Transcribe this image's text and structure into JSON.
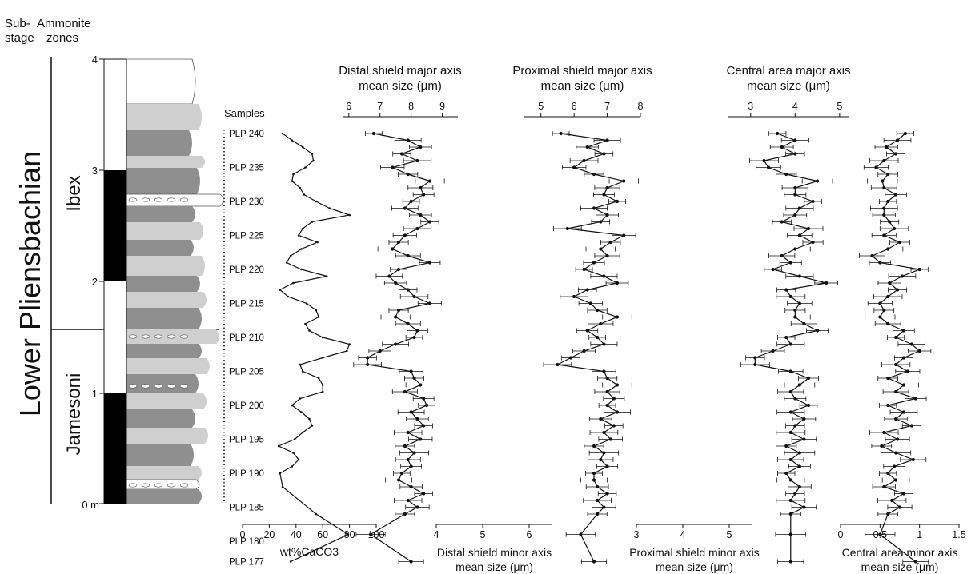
{
  "header": {
    "substage_label": [
      "Sub-",
      "stage"
    ],
    "zones_label": [
      "Ammonite",
      "zones"
    ],
    "samples_label": "Samples"
  },
  "stratigraphy": {
    "stage": "Lower Pliensbachian",
    "zones": [
      "Ibex",
      "Jamesoni"
    ],
    "meter_ticks": [
      "0 m",
      "1",
      "2",
      "3",
      "4"
    ]
  },
  "samples": [
    "PLP 240",
    "PLP 235",
    "PLP 230",
    "PLP 225",
    "PLP 220",
    "PLP 215",
    "PLP 210",
    "PLP 205",
    "PLP 200",
    "PLP 195",
    "PLP 190",
    "PLP 185",
    "PLP 180",
    "PLP 177"
  ],
  "colors": {
    "line": "#111111",
    "dark_bed": "#8f8f8f",
    "light_bed": "#cfcfcf",
    "black_bar": "#000000"
  },
  "chart_data": [
    {
      "type": "line",
      "xlabel": "wt%CaCO3",
      "xlim": [
        0,
        100
      ],
      "xticks": [
        "0",
        "20",
        "40",
        "60",
        "80",
        "100"
      ],
      "x": [
        30,
        37,
        45,
        52,
        53,
        47,
        38,
        37,
        43,
        46,
        55,
        65,
        80,
        52,
        45,
        42,
        56,
        44,
        36,
        33,
        44,
        63,
        38,
        28,
        34,
        48,
        55,
        57,
        47,
        50,
        60,
        80,
        78,
        60,
        43,
        45,
        57,
        60,
        60,
        43,
        37,
        44,
        50,
        52,
        45,
        39,
        27,
        38,
        42,
        37,
        28,
        30,
        55,
        79,
        36
      ],
      "y": [
        240,
        239,
        238,
        237,
        236,
        235,
        234,
        233,
        232,
        231,
        230,
        229,
        228,
        227,
        226,
        225,
        224,
        223,
        222,
        221,
        220,
        219,
        218,
        217,
        216,
        215,
        214,
        213,
        212,
        211,
        210,
        209,
        208,
        207,
        206,
        205,
        204,
        203,
        202,
        201,
        200,
        199,
        198,
        197,
        196,
        195,
        194,
        193,
        192,
        191,
        190,
        188,
        184,
        181,
        177
      ]
    },
    {
      "type": "line",
      "title": "Distal shield major axis mean size (μm)",
      "xlim": [
        5.8,
        9.5
      ],
      "xticks": [
        "6",
        "7",
        "8",
        "9"
      ],
      "x": [
        6.8,
        7.9,
        8.3,
        7.7,
        8.2,
        7.4,
        7.9,
        8.6,
        8.3,
        8.4,
        8.0,
        7.8,
        8.3,
        8.6,
        8.2,
        7.8,
        7.6,
        7.4,
        7.9,
        8.6,
        7.6,
        7.3,
        7.5,
        7.9,
        8.1,
        8.6,
        7.6,
        7.5,
        7.9,
        8.2,
        8.1,
        7.5,
        7.0,
        6.6,
        6.6,
        8.0,
        8.1,
        8.3,
        7.8,
        8.4,
        8.5,
        8.0,
        8.2,
        8.4,
        7.9,
        8.3,
        7.8,
        8.1,
        7.9,
        8.0,
        7.7,
        7.6,
        8.0,
        8.4,
        7.9,
        8.2,
        7.8,
        6.7,
        8.0
      ],
      "y": [
        240,
        239,
        238,
        237,
        236,
        235,
        234,
        233,
        232,
        231,
        230,
        229,
        228,
        227,
        226,
        225,
        224,
        223,
        222,
        221,
        220,
        219,
        218,
        217,
        216,
        215,
        214,
        213,
        212,
        211,
        210,
        209,
        208,
        207,
        206,
        205,
        204,
        203,
        202,
        201,
        200,
        199,
        198,
        197,
        196,
        195,
        194,
        193,
        192,
        191,
        190,
        189,
        188,
        187,
        186,
        185,
        184,
        181,
        177
      ],
      "secondary_axis": {
        "xlabel": "Distal shield minor axis mean size (μm)",
        "xlim": [
          4,
          6.5
        ],
        "xticks": [
          "4",
          "5",
          "6"
        ]
      }
    },
    {
      "type": "line",
      "title": "Proximal shield major axis mean size (μm)",
      "xlim": [
        4.5,
        8
      ],
      "xticks": [
        "5",
        "6",
        "7",
        "8"
      ],
      "x": [
        5.6,
        7.0,
        6.4,
        6.9,
        6.3,
        6.0,
        6.6,
        7.5,
        7.0,
        6.9,
        7.3,
        6.6,
        7.0,
        6.8,
        5.8,
        7.5,
        7.1,
        6.8,
        7.0,
        6.6,
        6.3,
        6.9,
        7.3,
        6.4,
        6.0,
        6.5,
        6.7,
        7.3,
        6.8,
        6.4,
        6.7,
        6.9,
        6.3,
        5.9,
        5.5,
        6.9,
        7.0,
        7.3,
        7.0,
        7.2,
        7.0,
        7.3,
        6.8,
        7.2,
        6.9,
        7.1,
        6.6,
        6.9,
        6.8,
        7.0,
        6.6,
        6.6,
        6.7,
        7.0,
        6.7,
        6.9,
        6.7,
        6.2,
        6.6
      ],
      "y": [
        240,
        239,
        238,
        237,
        236,
        235,
        234,
        233,
        232,
        231,
        230,
        229,
        228,
        227,
        226,
        225,
        224,
        223,
        222,
        221,
        220,
        219,
        218,
        217,
        216,
        215,
        214,
        213,
        212,
        211,
        210,
        209,
        208,
        207,
        206,
        205,
        204,
        203,
        202,
        201,
        200,
        199,
        198,
        197,
        196,
        195,
        194,
        193,
        192,
        191,
        190,
        189,
        188,
        187,
        186,
        185,
        184,
        181,
        177
      ],
      "secondary_axis": {
        "xlabel": "Proximal shield minor axis mean size (μm)",
        "xlim": [
          3,
          5.5
        ],
        "xticks": [
          "3",
          "4",
          "5"
        ]
      }
    },
    {
      "type": "line",
      "title": "Central area major axis mean size (μm)",
      "xlim": [
        2.5,
        5.2
      ],
      "xticks": [
        "3",
        "4",
        "5"
      ],
      "x": [
        3.6,
        4.0,
        3.7,
        4.0,
        3.3,
        3.4,
        3.8,
        4.5,
        4.0,
        4.0,
        4.4,
        4.1,
        4.0,
        3.7,
        4.3,
        4.1,
        4.4,
        4.0,
        3.7,
        3.9,
        3.5,
        4.1,
        4.7,
        3.8,
        3.9,
        4.1,
        4.0,
        4.0,
        4.2,
        4.5,
        3.8,
        3.9,
        3.5,
        3.1,
        3.1,
        3.9,
        4.3,
        4.1,
        3.9,
        4.0,
        4.3,
        3.9,
        4.2,
        4.0,
        3.9,
        4.2,
        3.8,
        4.1,
        3.9,
        4.1,
        3.8,
        3.9,
        4.1,
        4.0,
        3.9,
        4.2,
        3.9,
        3.9,
        3.9
      ],
      "y": [
        240,
        239,
        238,
        237,
        236,
        235,
        234,
        233,
        232,
        231,
        230,
        229,
        228,
        227,
        226,
        225,
        224,
        223,
        222,
        221,
        220,
        219,
        218,
        217,
        216,
        215,
        214,
        213,
        212,
        211,
        210,
        209,
        208,
        207,
        206,
        205,
        204,
        203,
        202,
        201,
        200,
        199,
        198,
        197,
        196,
        195,
        194,
        193,
        192,
        191,
        190,
        189,
        188,
        187,
        186,
        185,
        184,
        181,
        177
      ],
      "secondary_axis": {
        "xlabel": "Central area minor axis mean size (μm)",
        "xlim": [
          0,
          1.5
        ],
        "xticks": [
          "0",
          "0.5",
          "1",
          "1.5"
        ]
      }
    },
    {
      "type": "line",
      "xlabel": "Central area minor axis mean size (μm)",
      "xlim": [
        0,
        1.5
      ],
      "xticks": [
        "0",
        "0.5",
        "1",
        "1.5"
      ],
      "x": [
        0.82,
        0.72,
        0.58,
        0.7,
        0.55,
        0.45,
        0.6,
        0.53,
        0.55,
        0.7,
        0.6,
        0.55,
        0.55,
        0.62,
        0.68,
        0.55,
        0.75,
        0.6,
        0.4,
        0.5,
        1.0,
        0.78,
        0.62,
        0.72,
        0.6,
        0.5,
        0.55,
        0.5,
        0.6,
        0.8,
        0.7,
        0.9,
        1.0,
        0.8,
        0.7,
        0.85,
        0.6,
        0.8,
        0.7,
        0.95,
        0.6,
        0.8,
        0.7,
        0.9,
        0.55,
        0.72,
        0.52,
        0.7,
        0.92,
        0.68,
        0.6,
        0.7,
        0.55,
        0.8,
        0.65,
        0.75,
        0.6,
        0.5,
        0.95
      ],
      "y": [
        240,
        239,
        238,
        237,
        236,
        235,
        234,
        233,
        232,
        231,
        230,
        229,
        228,
        227,
        226,
        225,
        224,
        223,
        222,
        221,
        220,
        219,
        218,
        217,
        216,
        215,
        214,
        213,
        212,
        211,
        210,
        209,
        208,
        207,
        206,
        205,
        204,
        203,
        202,
        201,
        200,
        199,
        198,
        197,
        196,
        195,
        194,
        193,
        192,
        191,
        190,
        189,
        188,
        187,
        186,
        185,
        184,
        181,
        177
      ]
    }
  ]
}
